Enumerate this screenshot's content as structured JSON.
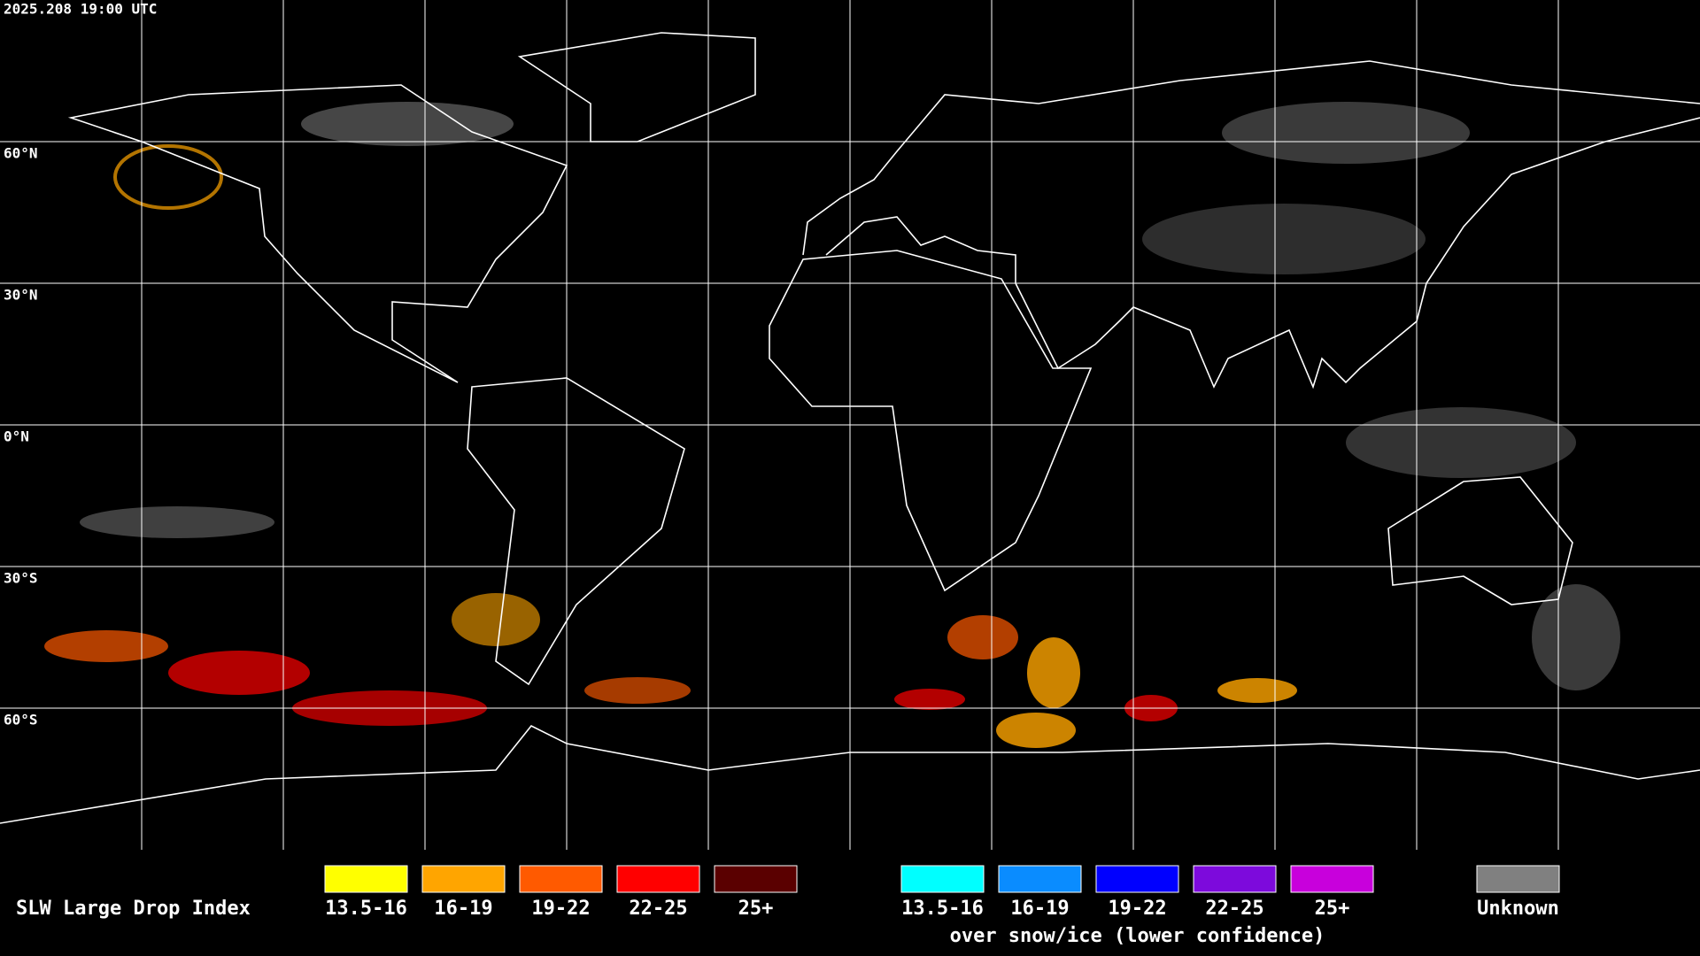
{
  "header": {
    "timestamp": "2025.208 19:00 UTC"
  },
  "map": {
    "latitude_labels": [
      "60°N",
      "30°N",
      "0°N",
      "30°S",
      "60°S"
    ]
  },
  "legend": {
    "title": "SLW Large Drop Index",
    "groups": [
      {
        "items": [
          {
            "label": "13.5-16",
            "color": "#ffff00"
          },
          {
            "label": "16-19",
            "color": "#ffa500"
          },
          {
            "label": "19-22",
            "color": "#ff5a00"
          },
          {
            "label": "22-25",
            "color": "#ff0000"
          },
          {
            "label": "25+",
            "color": "#5a0000"
          }
        ]
      },
      {
        "items": [
          {
            "label": "13.5-16",
            "color": "#00ffff"
          },
          {
            "label": "16-19",
            "color": "#0a8cff"
          },
          {
            "label": "19-22",
            "color": "#0000ff"
          },
          {
            "label": "22-25",
            "color": "#7d0adc"
          },
          {
            "label": "25+",
            "color": "#c800dc"
          }
        ],
        "caption": "over snow/ice (lower confidence)"
      },
      {
        "items": [
          {
            "label": "Unknown",
            "color": "#808080"
          }
        ]
      }
    ]
  }
}
